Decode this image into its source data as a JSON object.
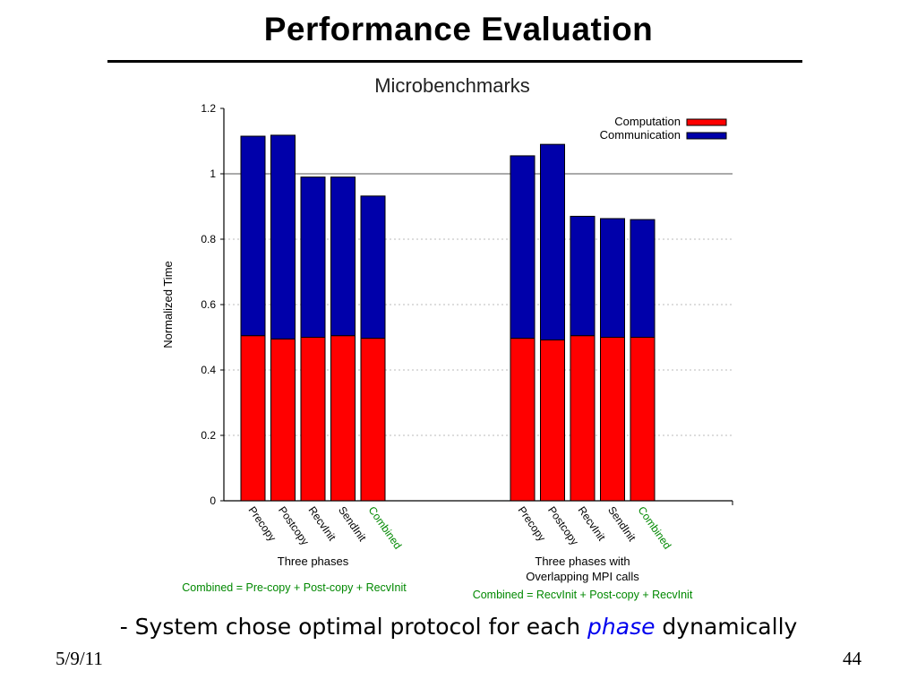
{
  "slide": {
    "title": "Performance Evaluation",
    "caption_pre": "- System chose optimal protocol for each ",
    "caption_em": "phase",
    "caption_post": " dynamically",
    "date": "5/9/11",
    "page_number": "44"
  },
  "colors": {
    "computation": "#ff0000",
    "communication": "#0000aa",
    "combined_label": "#008800"
  },
  "chart_data": {
    "type": "bar",
    "stacked": true,
    "title": "Microbenchmarks",
    "ylabel": "Normalized Time",
    "ylim": [
      0,
      1.2
    ],
    "yticks": [
      "0",
      "0.2",
      "0.4",
      "0.6",
      "0.8",
      "1",
      "1.2"
    ],
    "grid": true,
    "legend": {
      "position": "top-right",
      "entries": [
        "Computation",
        "Communication"
      ]
    },
    "groups": [
      {
        "label_lines": [
          "Three phases"
        ],
        "formula": "Combined = Pre-copy + Post-copy + RecvInit",
        "categories": [
          "Precopy",
          "Postcopy",
          "RecvInit",
          "SendInit",
          "Combined"
        ],
        "series": [
          {
            "name": "Computation",
            "values": [
              0.505,
              0.495,
              0.5,
              0.505,
              0.497
            ]
          },
          {
            "name": "Communication",
            "values": [
              0.61,
              0.623,
              0.49,
              0.485,
              0.435
            ]
          }
        ]
      },
      {
        "label_lines": [
          "Three phases with",
          "Overlapping MPI calls"
        ],
        "formula": "Combined = RecvInit + Post-copy + RecvInit",
        "categories": [
          "Precopy",
          "Postcopy",
          "RecvInit",
          "SendInit",
          "Combined"
        ],
        "series": [
          {
            "name": "Computation",
            "values": [
              0.497,
              0.492,
              0.505,
              0.5,
              0.5
            ]
          },
          {
            "name": "Communication",
            "values": [
              0.558,
              0.598,
              0.365,
              0.363,
              0.36
            ]
          }
        ]
      }
    ]
  }
}
